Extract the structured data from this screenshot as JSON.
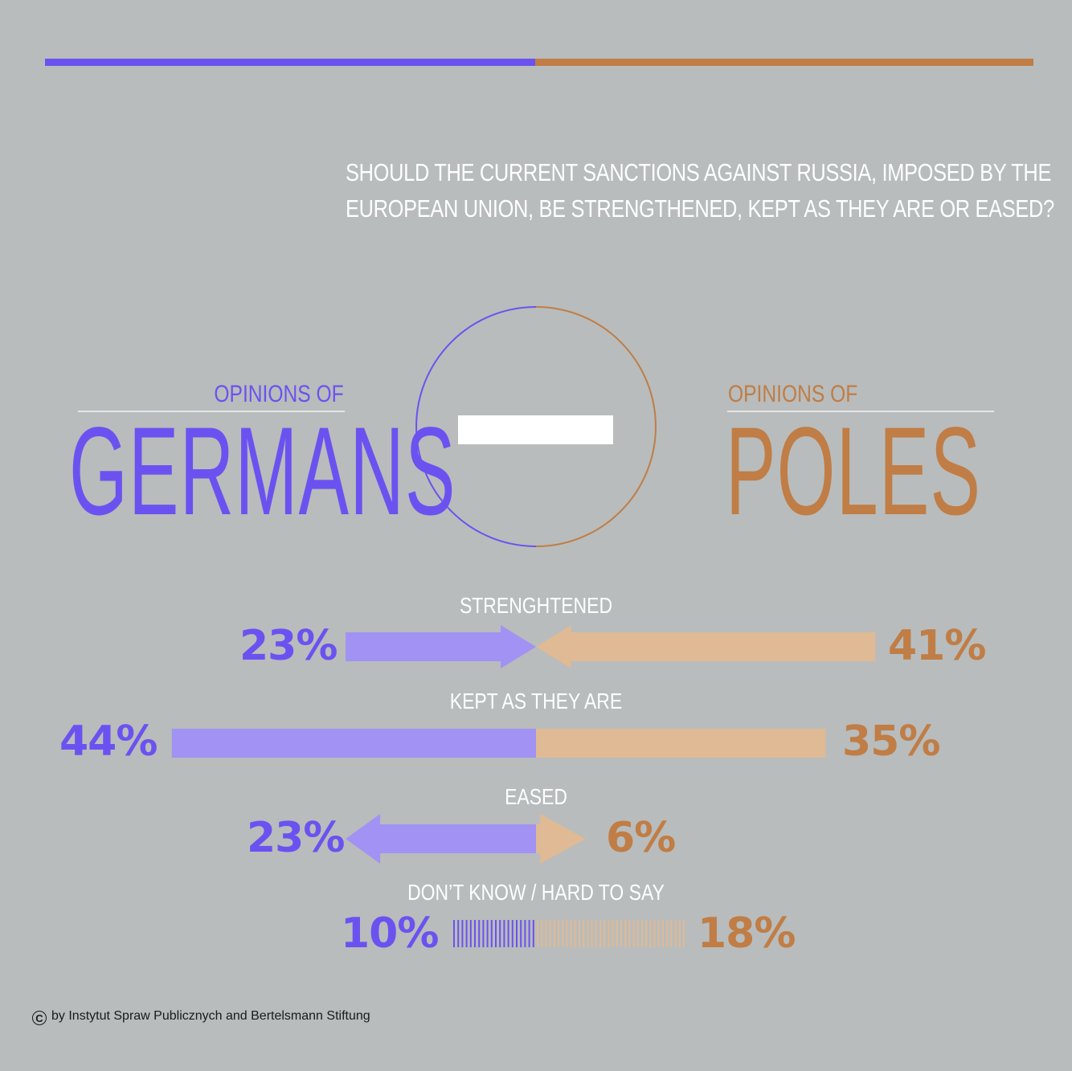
{
  "question": "SHOULD THE CURRENT SANCTIONS AGAINST RUSSIA, IMPOSED BY THE EUROPEAN UNION, BE STRENGTHENED, KEPT AS THEY ARE OR EASED?",
  "question_lines": [
    "SHOULD THE CURRENT SANCTIONS AGAINST RUSSIA, IMPOSED BY THE",
    "EUROPEAN UNION, BE STRENGTHENED, KEPT AS THEY ARE OR EASED?"
  ],
  "left_header": {
    "prefix": "OPINIONS OF",
    "name": "GERMANS"
  },
  "right_header": {
    "prefix": "OPINIONS OF",
    "name": "POLES"
  },
  "colors": {
    "germans": "#6b52f0",
    "germans_light": "#a192f4",
    "poles": "#c07d45",
    "poles_light": "#dfba95",
    "background": "#b8bcbc"
  },
  "center_icon": "minus-sign-icon",
  "credit": "by Instytut Spraw Publicznych and Bertelsmann Stiftung",
  "chart_data": {
    "type": "bar",
    "categories": [
      "STRENGHTENED",
      "KEPT AS THEY ARE",
      "EASED",
      "DON’T KNOW / HARD TO SAY"
    ],
    "series": [
      {
        "name": "GERMANS",
        "values": [
          23,
          44,
          23,
          10
        ],
        "labels": [
          "23%",
          "44%",
          "23%",
          "10%"
        ]
      },
      {
        "name": "POLES",
        "values": [
          41,
          35,
          6,
          18
        ],
        "labels": [
          "41%",
          "35%",
          "6%",
          "18%"
        ]
      }
    ],
    "shapes": [
      "arrow-inward",
      "bar",
      "arrow-outward",
      "hatched"
    ],
    "unit": "%"
  }
}
